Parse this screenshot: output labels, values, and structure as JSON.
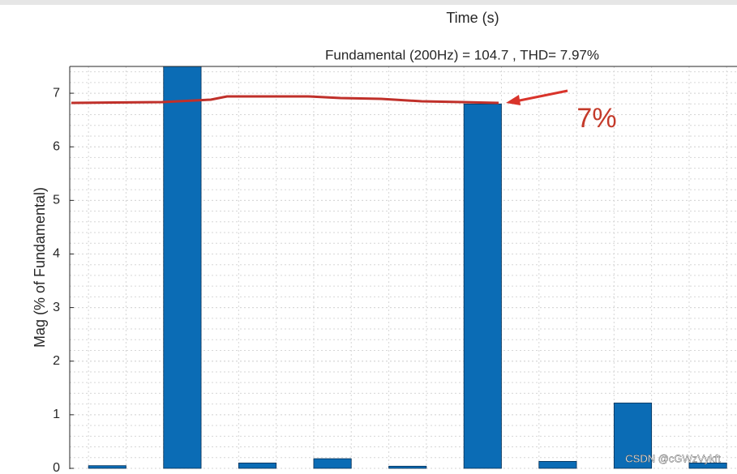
{
  "chart_data": {
    "type": "bar",
    "top_label": "Time (s)",
    "title": "Fundamental (200Hz) = 104.7 , THD= 7.97%",
    "y_label": "Mag (% of Fundamental)",
    "annotation": "7%",
    "watermark": "CSDN @cGWzVykft",
    "categories": [
      null,
      null,
      null,
      null,
      null,
      null,
      null,
      null,
      null
    ],
    "values": [
      0.05,
      7.5,
      0.1,
      0.18,
      0.04,
      6.8,
      0.13,
      1.22,
      0.1
    ],
    "color": "#0b6cb5",
    "ylim": [
      0,
      7.5
    ],
    "yticks": [
      0,
      1,
      2,
      3,
      4,
      5,
      6,
      7
    ],
    "grid": true
  }
}
